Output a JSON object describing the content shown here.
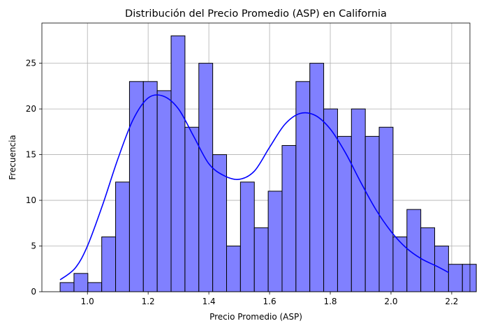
{
  "chart_data": {
    "type": "bar",
    "title": "Distribución del Precio Promedio (ASP) en California",
    "xlabel": "Precio Promedio (ASP)",
    "ylabel": "Frecuencia",
    "xlim": [
      0.85,
      2.26
    ],
    "ylim": [
      0,
      29.4
    ],
    "xticks": [
      "1.0",
      "1.2",
      "1.4",
      "1.6",
      "1.8",
      "2.0",
      "2.2"
    ],
    "yticks": [
      "0",
      "5",
      "10",
      "15",
      "20",
      "25"
    ],
    "grid": true,
    "bin_start": 0.91,
    "bin_width": 0.0457,
    "counts": [
      1,
      2,
      1,
      6,
      12,
      23,
      23,
      22,
      28,
      18,
      25,
      15,
      5,
      12,
      7,
      11,
      16,
      23,
      25,
      20,
      17,
      20,
      17,
      18,
      6,
      9,
      7,
      5,
      3,
      3
    ],
    "kde": {
      "x": [
        0.91,
        0.96,
        1.0,
        1.05,
        1.1,
        1.15,
        1.2,
        1.25,
        1.3,
        1.35,
        1.4,
        1.45,
        1.5,
        1.55,
        1.6,
        1.65,
        1.7,
        1.75,
        1.8,
        1.85,
        1.9,
        1.95,
        2.0,
        2.05,
        2.1,
        2.15,
        2.19
      ],
      "y": [
        1.3,
        2.6,
        5.0,
        9.5,
        14.5,
        18.8,
        21.2,
        21.4,
        20.0,
        17.0,
        14.0,
        12.7,
        12.3,
        13.2,
        15.8,
        18.3,
        19.5,
        19.3,
        17.8,
        15.2,
        12.0,
        9.0,
        6.6,
        4.8,
        3.6,
        2.8,
        2.1
      ]
    },
    "colors": {
      "bar_fill": "#8080ff",
      "bar_edge": "#000000",
      "kde_line": "#0000ff"
    }
  }
}
